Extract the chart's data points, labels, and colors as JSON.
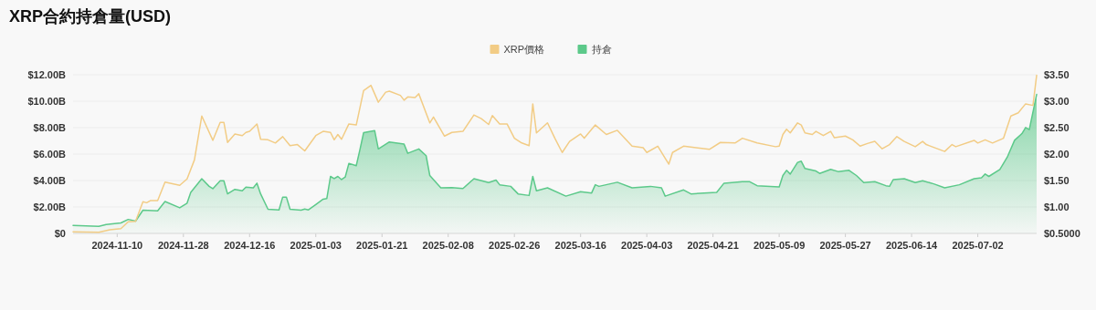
{
  "chart_data": {
    "type": "area",
    "title": "XRP合約持倉量(USD)",
    "xlim": [
      "2024-10-29",
      "2025-07-18"
    ],
    "xticks": [
      "2024-11-10",
      "2024-11-28",
      "2024-12-16",
      "2025-01-03",
      "2025-01-21",
      "2025-02-08",
      "2025-02-26",
      "2025-03-16",
      "2025-04-03",
      "2025-04-21",
      "2025-05-09",
      "2025-05-27",
      "2025-06-14",
      "2025-07-02"
    ],
    "ylim": [
      0,
      12
    ],
    "yticks": [
      {
        "value": 0,
        "label": "$0"
      },
      {
        "value": 2,
        "label": "$2.00B"
      },
      {
        "value": 4,
        "label": "$4.00B"
      },
      {
        "value": 6,
        "label": "$6.00B"
      },
      {
        "value": 8,
        "label": "$8.00B"
      },
      {
        "value": 10,
        "label": "$10.00B"
      },
      {
        "value": 12,
        "label": "$12.00B"
      }
    ],
    "y2lim": [
      0.5,
      3.5
    ],
    "y2ticks": [
      {
        "value": 0.5,
        "label": "$0.5000"
      },
      {
        "value": 1,
        "label": "$1.00"
      },
      {
        "value": 1.5,
        "label": "$1.50"
      },
      {
        "value": 2,
        "label": "$2.00"
      },
      {
        "value": 2.5,
        "label": "$2.50"
      },
      {
        "value": 3,
        "label": "$3.00"
      },
      {
        "value": 3.5,
        "label": "$3.50"
      }
    ],
    "grid": "y",
    "legend": "top",
    "series": [
      {
        "name": "XRP價格",
        "type": "line",
        "axis": "y2",
        "color": "#f2cc85",
        "x": [
          "2024-10-29",
          "2024-11-05",
          "2024-11-08",
          "2024-11-11",
          "2024-11-13",
          "2024-11-15",
          "2024-11-17",
          "2024-11-18",
          "2024-11-19",
          "2024-11-21",
          "2024-11-23",
          "2024-11-27",
          "2024-11-29",
          "2024-12-01",
          "2024-12-03",
          "2024-12-06",
          "2024-12-08",
          "2024-12-09",
          "2024-12-10",
          "2024-12-12",
          "2024-12-14",
          "2024-12-15",
          "2024-12-16",
          "2024-12-18",
          "2024-12-19",
          "2024-12-21",
          "2024-12-23",
          "2024-12-25",
          "2024-12-27",
          "2024-12-29",
          "2024-12-31",
          "2025-01-03",
          "2025-01-05",
          "2025-01-07",
          "2025-01-08",
          "2025-01-09",
          "2025-01-10",
          "2025-01-12",
          "2025-01-14",
          "2025-01-16",
          "2025-01-18",
          "2025-01-20",
          "2025-01-22",
          "2025-01-23",
          "2025-01-26",
          "2025-01-27",
          "2025-01-28",
          "2025-01-30",
          "2025-01-31",
          "2025-02-03",
          "2025-02-04",
          "2025-02-07",
          "2025-02-09",
          "2025-02-12",
          "2025-02-15",
          "2025-02-17",
          "2025-02-19",
          "2025-02-20",
          "2025-02-22",
          "2025-02-24",
          "2025-02-26",
          "2025-02-28",
          "2025-03-02",
          "2025-03-03",
          "2025-03-04",
          "2025-03-07",
          "2025-03-09",
          "2025-03-11",
          "2025-03-13",
          "2025-03-16",
          "2025-03-17",
          "2025-03-20",
          "2025-03-23",
          "2025-03-26",
          "2025-03-30",
          "2025-04-02",
          "2025-04-03",
          "2025-04-06",
          "2025-04-08",
          "2025-04-09",
          "2025-04-10",
          "2025-04-13",
          "2025-04-20",
          "2025-04-23",
          "2025-04-27",
          "2025-04-29",
          "2025-05-03",
          "2025-05-08",
          "2025-05-09",
          "2025-05-10",
          "2025-05-11",
          "2025-05-12",
          "2025-05-14",
          "2025-05-15",
          "2025-05-16",
          "2025-05-18",
          "2025-05-19",
          "2025-05-21",
          "2025-05-23",
          "2025-05-24",
          "2025-05-27",
          "2025-05-29",
          "2025-05-31",
          "2025-06-02",
          "2025-06-04",
          "2025-06-06",
          "2025-06-08",
          "2025-06-10",
          "2025-06-12",
          "2025-06-15",
          "2025-06-17",
          "2025-06-18",
          "2025-06-23",
          "2025-06-25",
          "2025-06-26",
          "2025-07-01",
          "2025-07-02",
          "2025-07-04",
          "2025-07-06",
          "2025-07-09",
          "2025-07-11",
          "2025-07-13",
          "2025-07-15",
          "2025-07-17",
          "2025-07-18"
        ],
        "values": [
          0.53,
          0.52,
          0.57,
          0.59,
          0.72,
          0.73,
          1.1,
          1.08,
          1.12,
          1.12,
          1.47,
          1.41,
          1.53,
          1.89,
          2.72,
          2.26,
          2.6,
          2.6,
          2.22,
          2.38,
          2.35,
          2.41,
          2.43,
          2.57,
          2.28,
          2.27,
          2.21,
          2.33,
          2.16,
          2.18,
          2.06,
          2.35,
          2.43,
          2.41,
          2.27,
          2.37,
          2.28,
          2.57,
          2.55,
          3.2,
          3.3,
          2.98,
          3.17,
          3.19,
          3.11,
          3.02,
          3.08,
          3.07,
          3.14,
          2.59,
          2.7,
          2.34,
          2.41,
          2.43,
          2.74,
          2.67,
          2.56,
          2.73,
          2.57,
          2.57,
          2.3,
          2.21,
          2.16,
          2.95,
          2.4,
          2.59,
          2.3,
          2.03,
          2.24,
          2.38,
          2.3,
          2.55,
          2.37,
          2.45,
          2.15,
          2.12,
          2.03,
          2.15,
          1.92,
          1.81,
          2.03,
          2.15,
          2.09,
          2.22,
          2.21,
          2.3,
          2.21,
          2.14,
          2.15,
          2.37,
          2.47,
          2.4,
          2.59,
          2.55,
          2.4,
          2.37,
          2.43,
          2.35,
          2.43,
          2.31,
          2.34,
          2.27,
          2.15,
          2.2,
          2.24,
          2.1,
          2.18,
          2.33,
          2.24,
          2.14,
          2.24,
          2.18,
          2.05,
          2.18,
          2.14,
          2.26,
          2.21,
          2.27,
          2.21,
          2.3,
          2.72,
          2.78,
          2.95,
          2.92,
          3.49
        ]
      },
      {
        "name": "持倉",
        "type": "area",
        "color": "#5cc98a",
        "x": [
          "2024-10-29",
          "2024-11-05",
          "2024-11-07",
          "2024-11-11",
          "2024-11-13",
          "2024-11-15",
          "2024-11-17",
          "2024-11-21",
          "2024-11-23",
          "2024-11-27",
          "2024-11-29",
          "2024-11-30",
          "2024-12-03",
          "2024-12-05",
          "2024-12-06",
          "2024-12-08",
          "2024-12-09",
          "2024-12-10",
          "2024-12-12",
          "2024-12-14",
          "2024-12-15",
          "2024-12-17",
          "2024-12-18",
          "2024-12-19",
          "2024-12-21",
          "2024-12-24",
          "2024-12-25",
          "2024-12-26",
          "2024-12-27",
          "2024-12-30",
          "2024-12-31",
          "2025-01-01",
          "2025-01-03",
          "2025-01-05",
          "2025-01-06",
          "2025-01-07",
          "2025-01-08",
          "2025-01-09",
          "2025-01-10",
          "2025-01-11",
          "2025-01-12",
          "2025-01-14",
          "2025-01-15",
          "2025-01-16",
          "2025-01-18",
          "2025-01-19",
          "2025-01-20",
          "2025-01-23",
          "2025-01-27",
          "2025-01-28",
          "2025-01-31",
          "2025-02-02",
          "2025-02-03",
          "2025-02-06",
          "2025-02-09",
          "2025-02-12",
          "2025-02-15",
          "2025-02-19",
          "2025-02-21",
          "2025-02-22",
          "2025-02-25",
          "2025-02-27",
          "2025-03-02",
          "2025-03-03",
          "2025-03-04",
          "2025-03-07",
          "2025-03-12",
          "2025-03-16",
          "2025-03-19",
          "2025-03-20",
          "2025-03-21",
          "2025-03-26",
          "2025-03-30",
          "2025-04-04",
          "2025-04-07",
          "2025-04-08",
          "2025-04-13",
          "2025-04-15",
          "2025-04-22",
          "2025-04-24",
          "2025-04-29",
          "2025-05-01",
          "2025-05-03",
          "2025-05-09",
          "2025-05-10",
          "2025-05-11",
          "2025-05-12",
          "2025-05-14",
          "2025-05-15",
          "2025-05-16",
          "2025-05-19",
          "2025-05-20",
          "2025-05-23",
          "2025-05-25",
          "2025-05-28",
          "2025-05-30",
          "2025-06-01",
          "2025-06-04",
          "2025-06-07",
          "2025-06-08",
          "2025-06-09",
          "2025-06-12",
          "2025-06-15",
          "2025-06-17",
          "2025-06-20",
          "2025-06-23",
          "2025-06-27",
          "2025-07-01",
          "2025-07-03",
          "2025-07-04",
          "2025-07-05",
          "2025-07-08",
          "2025-07-10",
          "2025-07-12",
          "2025-07-14",
          "2025-07-15",
          "2025-07-16",
          "2025-07-18"
        ],
        "values": [
          0.6,
          0.53,
          0.67,
          0.79,
          1.06,
          0.93,
          1.76,
          1.71,
          2.41,
          1.94,
          2.29,
          3.1,
          4.14,
          3.56,
          3.38,
          3.98,
          3.98,
          2.99,
          3.33,
          3.22,
          3.5,
          3.45,
          3.8,
          2.99,
          1.83,
          1.78,
          2.75,
          2.75,
          1.83,
          1.76,
          1.85,
          1.78,
          2.18,
          2.59,
          2.64,
          4.31,
          4.14,
          4.31,
          4.07,
          4.26,
          5.3,
          5.12,
          6.34,
          7.62,
          7.73,
          7.78,
          6.39,
          6.92,
          6.76,
          6.06,
          6.39,
          5.88,
          4.38,
          3.45,
          3.47,
          3.4,
          4.14,
          3.84,
          4.03,
          3.68,
          3.56,
          2.99,
          2.87,
          4.31,
          3.22,
          3.45,
          2.82,
          3.15,
          3.06,
          3.68,
          3.56,
          3.87,
          3.45,
          3.56,
          3.45,
          2.82,
          3.29,
          2.99,
          3.1,
          3.8,
          3.91,
          3.91,
          3.61,
          3.52,
          4.38,
          4.77,
          4.49,
          5.37,
          5.46,
          4.91,
          4.72,
          4.54,
          4.84,
          4.68,
          4.77,
          4.38,
          3.84,
          3.91,
          3.61,
          3.56,
          4.07,
          4.14,
          3.84,
          3.98,
          3.75,
          3.45,
          3.68,
          4.14,
          4.21,
          4.49,
          4.31,
          4.84,
          5.76,
          7.04,
          7.55,
          8.01,
          7.85,
          10.51
        ]
      }
    ]
  }
}
